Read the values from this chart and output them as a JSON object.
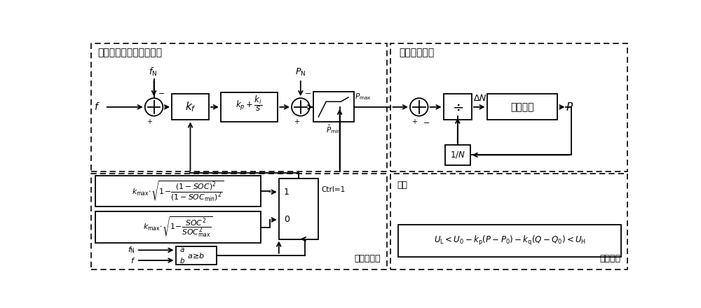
{
  "fig_width": 10.0,
  "fig_height": 4.4,
  "dpi": 100,
  "bg_color": "#ffffff",
  "line_color": "#000000",
  "title_top_left": "下垂控制及频率辅助控制",
  "title_top_right": "功率偏差调整",
  "label_bottom_left": "变下垂系数",
  "label_bottom_right": "电压约束",
  "label_tuichu": "推出",
  "label_ac": "空调集群"
}
